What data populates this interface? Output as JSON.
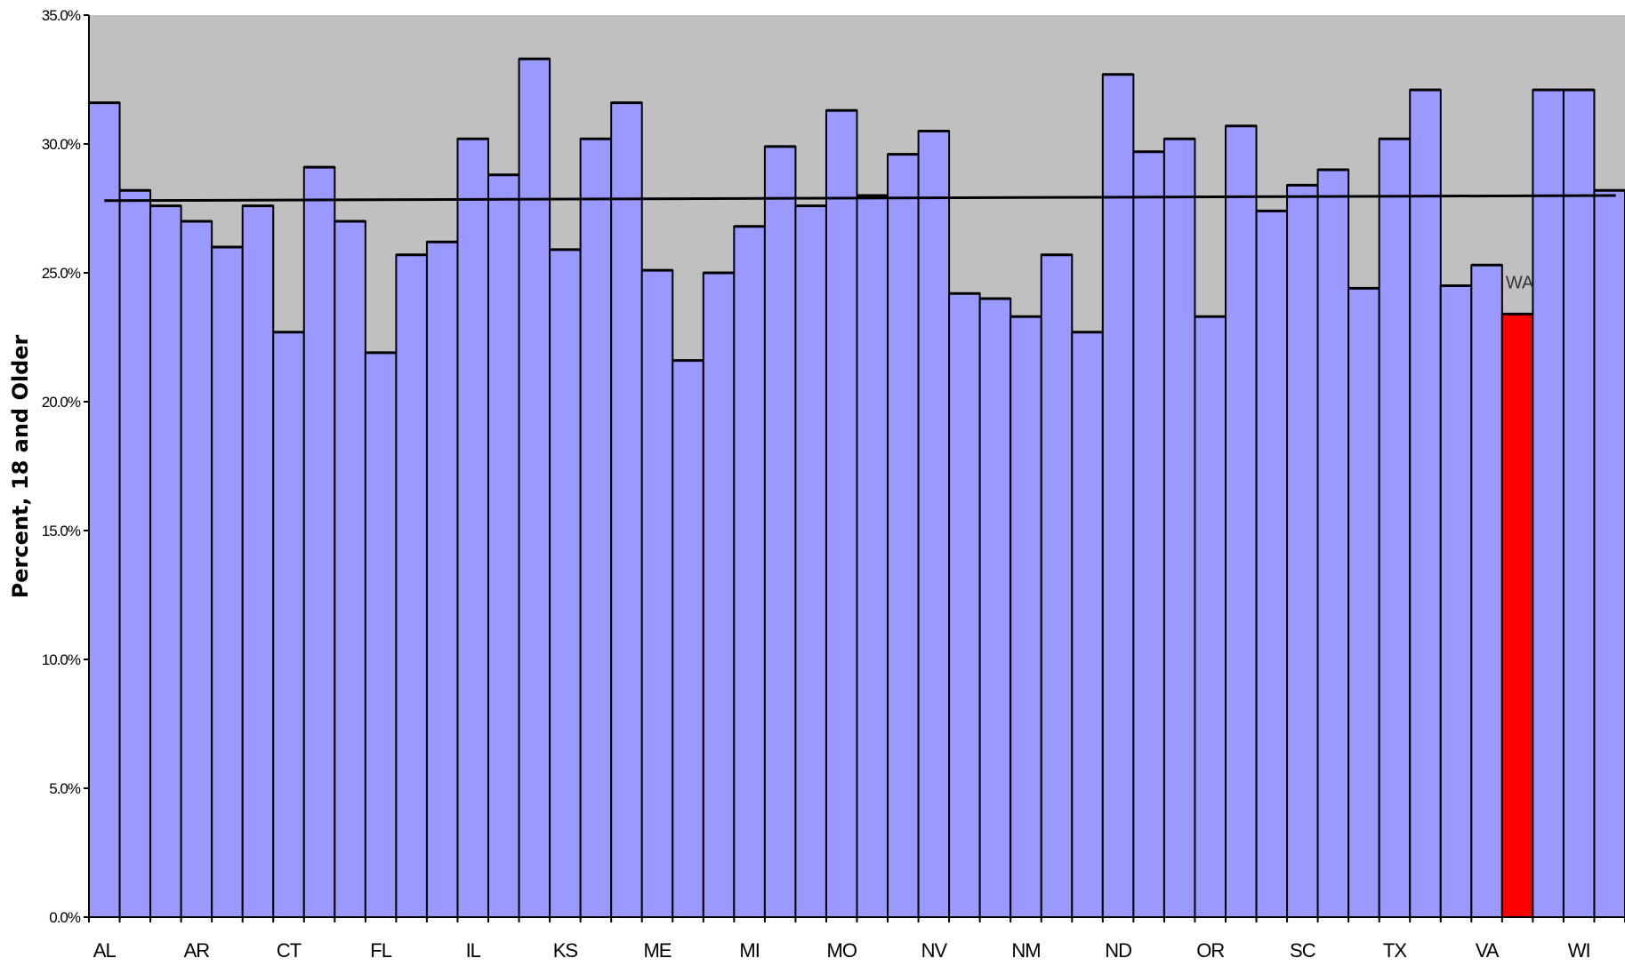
{
  "chart_data": {
    "type": "bar",
    "title": "",
    "xlabel": "",
    "ylabel": "Percent, 18 and Older",
    "ylim": [
      0,
      0.35
    ],
    "y_ticks": [
      0,
      0.05,
      0.1,
      0.15,
      0.2,
      0.25,
      0.3,
      0.35
    ],
    "y_tick_labels": [
      "0.0%",
      "5.0%",
      "10.0%",
      "15.0%",
      "20.0%",
      "25.0%",
      "30.0%",
      "35.0%"
    ],
    "x_tick_labels": [
      "AL",
      "AR",
      "CT",
      "FL",
      "IL",
      "KS",
      "ME",
      "MI",
      "MO",
      "NV",
      "NM",
      "ND",
      "OR",
      "SC",
      "TX",
      "VA",
      "WI"
    ],
    "x_tick_label_bar_index": [
      0,
      3,
      6,
      9,
      12,
      15,
      18,
      21,
      24,
      27,
      30,
      33,
      36,
      39,
      42,
      45,
      48
    ],
    "values": [
      0.316,
      0.282,
      0.276,
      0.27,
      0.26,
      0.276,
      0.227,
      0.291,
      0.27,
      0.219,
      0.257,
      0.262,
      0.302,
      0.288,
      0.333,
      0.259,
      0.302,
      0.316,
      0.251,
      0.216,
      0.25,
      0.268,
      0.299,
      0.276,
      0.313,
      0.28,
      0.296,
      0.305,
      0.242,
      0.24,
      0.233,
      0.257,
      0.227,
      0.327,
      0.297,
      0.302,
      0.233,
      0.307,
      0.274,
      0.284,
      0.29,
      0.244,
      0.302,
      0.321,
      0.245,
      0.253,
      0.234,
      0.321,
      0.321,
      0.282
    ],
    "highlight_index": 46,
    "highlight_label": "WA",
    "trend_line": [
      0.278,
      0.28
    ],
    "colors": {
      "bar": "#9999ff",
      "highlight": "#ff0000",
      "plot_background": "#c0c0c0",
      "outline": "#000000"
    },
    "grid": false,
    "legend": "none"
  }
}
